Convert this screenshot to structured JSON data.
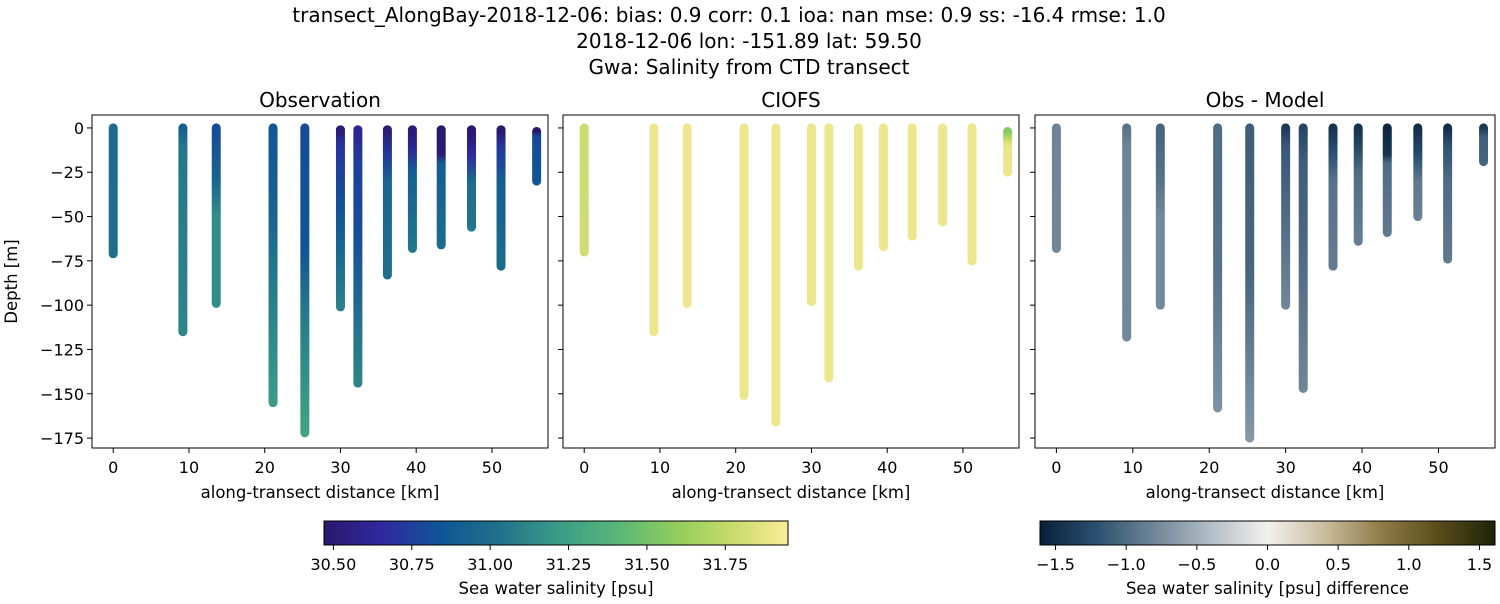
{
  "title_lines": [
    "transect_AlongBay-2018-12-06: bias: 0.9  corr: 0.1  ioa: nan  mse: 0.9  ss: -16.4  rmse: 1.0",
    "2018-12-06 lon: -151.89 lat: 59.50",
    "Gwa: Salinity from CTD transect"
  ],
  "chart_data": [
    {
      "type": "scatter",
      "title": "Observation",
      "xlabel": "along-transect distance [km]",
      "ylabel": "Depth [m]",
      "xlim": [
        -2.8,
        57.4
      ],
      "ylim": [
        -180.6,
        7.3
      ],
      "xticks": [
        0,
        10,
        20,
        30,
        40,
        50
      ],
      "yticks": [
        0,
        -25,
        -50,
        -75,
        -100,
        -125,
        -150,
        -175
      ],
      "ytick_labels": [
        "0",
        "−25",
        "−50",
        "−75",
        "−100",
        "−125",
        "−150",
        "−175"
      ],
      "colormap": "haline",
      "stations": [
        {
          "x": 0,
          "top": 0,
          "bottom": -71,
          "profile": [
            [
              0,
              31.0
            ],
            [
              71,
              31.02
            ]
          ]
        },
        {
          "x": 9.2,
          "top": 0,
          "bottom": -115,
          "profile": [
            [
              0,
              30.9
            ],
            [
              10,
              31.05
            ],
            [
              115,
              31.12
            ]
          ]
        },
        {
          "x": 13.6,
          "top": 0,
          "bottom": -99,
          "profile": [
            [
              0,
              30.8
            ],
            [
              30,
              30.95
            ],
            [
              50,
              31.15
            ],
            [
              99,
              31.15
            ]
          ]
        },
        {
          "x": 21.1,
          "top": 0,
          "bottom": -155,
          "profile": [
            [
              0,
              30.85
            ],
            [
              50,
              30.95
            ],
            [
              100,
              31.1
            ],
            [
              155,
              31.22
            ]
          ]
        },
        {
          "x": 25.3,
          "top": 0,
          "bottom": -172,
          "profile": [
            [
              0,
              30.8
            ],
            [
              70,
              30.85
            ],
            [
              100,
              31.05
            ],
            [
              172,
              31.27
            ]
          ]
        },
        {
          "x": 30.0,
          "top": -1,
          "bottom": -101,
          "profile": [
            [
              0,
              30.5
            ],
            [
              10,
              30.7
            ],
            [
              50,
              30.85
            ],
            [
              101,
              31.1
            ]
          ]
        },
        {
          "x": 32.3,
          "top": -1,
          "bottom": -144,
          "profile": [
            [
              0,
              30.6
            ],
            [
              20,
              30.75
            ],
            [
              55,
              30.8
            ],
            [
              144,
              31.12
            ]
          ]
        },
        {
          "x": 36.2,
          "top": -1,
          "bottom": -83,
          "profile": [
            [
              0,
              30.5
            ],
            [
              15,
              30.72
            ],
            [
              30,
              30.95
            ],
            [
              83,
              31.02
            ]
          ]
        },
        {
          "x": 39.5,
          "top": -1,
          "bottom": -68,
          "profile": [
            [
              0,
              30.5
            ],
            [
              10,
              30.6
            ],
            [
              25,
              30.9
            ],
            [
              68,
              31.05
            ]
          ]
        },
        {
          "x": 43.3,
          "top": -1,
          "bottom": -66,
          "profile": [
            [
              0,
              30.47
            ],
            [
              15,
              30.5
            ],
            [
              20,
              30.9
            ],
            [
              66,
              31.0
            ]
          ]
        },
        {
          "x": 47.3,
          "top": -1,
          "bottom": -56,
          "profile": [
            [
              0,
              30.47
            ],
            [
              15,
              30.65
            ],
            [
              30,
              31.0
            ],
            [
              56,
              31.05
            ]
          ]
        },
        {
          "x": 51.2,
          "top": -1,
          "bottom": -78,
          "profile": [
            [
              0,
              30.47
            ],
            [
              10,
              30.7
            ],
            [
              30,
              30.9
            ],
            [
              78,
              31.0
            ]
          ]
        },
        {
          "x": 55.9,
          "top": -2,
          "bottom": -30,
          "profile": [
            [
              2,
              30.47
            ],
            [
              5,
              30.8
            ],
            [
              30,
              30.85
            ]
          ]
        }
      ]
    },
    {
      "type": "scatter",
      "title": "CIOFS",
      "xlabel": "along-transect distance [km]",
      "xlim": [
        -2.8,
        57.4
      ],
      "ylim": [
        -180.6,
        7.3
      ],
      "xticks": [
        0,
        10,
        20,
        30,
        40,
        50
      ],
      "yticks": [
        0,
        -25,
        -50,
        -75,
        -100,
        -125,
        -150,
        -175
      ],
      "colormap": "haline",
      "stations": [
        {
          "x": 0,
          "top": 0,
          "bottom": -70,
          "profile": [
            [
              0,
              31.78
            ],
            [
              70,
              31.8
            ]
          ]
        },
        {
          "x": 9.2,
          "top": 0,
          "bottom": -115,
          "profile": [
            [
              0,
              31.9
            ],
            [
              115,
              31.9
            ]
          ]
        },
        {
          "x": 13.6,
          "top": 0,
          "bottom": -99,
          "profile": [
            [
              0,
              31.9
            ],
            [
              99,
              31.9
            ]
          ]
        },
        {
          "x": 21.1,
          "top": 0,
          "bottom": -151,
          "profile": [
            [
              0,
              31.9
            ],
            [
              151,
              31.9
            ]
          ]
        },
        {
          "x": 25.3,
          "top": 0,
          "bottom": -166,
          "profile": [
            [
              0,
              31.9
            ],
            [
              166,
              31.9
            ]
          ]
        },
        {
          "x": 30.0,
          "top": 0,
          "bottom": -98,
          "profile": [
            [
              0,
              31.9
            ],
            [
              98,
              31.9
            ]
          ]
        },
        {
          "x": 32.3,
          "top": 0,
          "bottom": -141,
          "profile": [
            [
              0,
              31.9
            ],
            [
              141,
              31.9
            ]
          ]
        },
        {
          "x": 36.2,
          "top": 0,
          "bottom": -78,
          "profile": [
            [
              0,
              31.9
            ],
            [
              78,
              31.9
            ]
          ]
        },
        {
          "x": 39.5,
          "top": 0,
          "bottom": -67,
          "profile": [
            [
              0,
              31.9
            ],
            [
              67,
              31.9
            ]
          ]
        },
        {
          "x": 43.3,
          "top": 0,
          "bottom": -61,
          "profile": [
            [
              0,
              31.9
            ],
            [
              61,
              31.9
            ]
          ]
        },
        {
          "x": 47.3,
          "top": 0,
          "bottom": -53,
          "profile": [
            [
              0,
              31.9
            ],
            [
              53,
              31.9
            ]
          ]
        },
        {
          "x": 51.2,
          "top": 0,
          "bottom": -75,
          "profile": [
            [
              0,
              31.9
            ],
            [
              75,
              31.9
            ]
          ]
        },
        {
          "x": 55.9,
          "top": -2,
          "bottom": -25,
          "profile": [
            [
              2,
              31.55
            ],
            [
              6,
              31.75
            ],
            [
              10,
              31.88
            ],
            [
              25,
              31.9
            ]
          ]
        }
      ]
    },
    {
      "type": "scatter",
      "title": "Obs - Model",
      "xlabel": "along-transect distance [km]",
      "xlim": [
        -2.8,
        57.4
      ],
      "ylim": [
        -180.6,
        7.3
      ],
      "xticks": [
        0,
        10,
        20,
        30,
        40,
        50
      ],
      "yticks": [
        0,
        -25,
        -50,
        -75,
        -100,
        -125,
        -150,
        -175
      ],
      "colormap": "diff",
      "stations": [
        {
          "x": 0,
          "top": 0,
          "bottom": -68,
          "profile": [
            [
              0,
              -0.82
            ],
            [
              68,
              -0.8
            ]
          ]
        },
        {
          "x": 9.2,
          "top": 0,
          "bottom": -118,
          "profile": [
            [
              0,
              -0.95
            ],
            [
              10,
              -0.82
            ],
            [
              118,
              -0.78
            ]
          ]
        },
        {
          "x": 13.6,
          "top": 0,
          "bottom": -100,
          "profile": [
            [
              0,
              -1.05
            ],
            [
              30,
              -0.95
            ],
            [
              50,
              -0.78
            ],
            [
              100,
              -0.78
            ]
          ]
        },
        {
          "x": 21.1,
          "top": 0,
          "bottom": -158,
          "profile": [
            [
              0,
              -1.0
            ],
            [
              80,
              -0.95
            ],
            [
              158,
              -0.72
            ]
          ]
        },
        {
          "x": 25.3,
          "top": 0,
          "bottom": -175,
          "profile": [
            [
              0,
              -1.1
            ],
            [
              80,
              -1.05
            ],
            [
              175,
              -0.68
            ]
          ]
        },
        {
          "x": 30.0,
          "top": 0,
          "bottom": -100,
          "profile": [
            [
              0,
              -1.4
            ],
            [
              10,
              -1.15
            ],
            [
              50,
              -1.0
            ],
            [
              100,
              -0.8
            ]
          ]
        },
        {
          "x": 32.3,
          "top": 0,
          "bottom": -147,
          "profile": [
            [
              0,
              -1.3
            ],
            [
              20,
              -1.1
            ],
            [
              55,
              -1.05
            ],
            [
              147,
              -0.8
            ]
          ]
        },
        {
          "x": 36.2,
          "top": 0,
          "bottom": -78,
          "profile": [
            [
              0,
              -1.45
            ],
            [
              15,
              -1.2
            ],
            [
              30,
              -0.95
            ],
            [
              78,
              -0.88
            ]
          ]
        },
        {
          "x": 39.5,
          "top": 0,
          "bottom": -64,
          "profile": [
            [
              0,
              -1.45
            ],
            [
              10,
              -1.3
            ],
            [
              25,
              -1.0
            ],
            [
              64,
              -0.85
            ]
          ]
        },
        {
          "x": 43.3,
          "top": 0,
          "bottom": -59,
          "profile": [
            [
              0,
              -1.55
            ],
            [
              15,
              -1.45
            ],
            [
              20,
              -1.0
            ],
            [
              59,
              -0.9
            ]
          ]
        },
        {
          "x": 47.3,
          "top": 0,
          "bottom": -50,
          "profile": [
            [
              0,
              -1.5
            ],
            [
              15,
              -1.25
            ],
            [
              30,
              -0.9
            ],
            [
              50,
              -0.85
            ]
          ]
        },
        {
          "x": 51.2,
          "top": 0,
          "bottom": -74,
          "profile": [
            [
              0,
              -1.5
            ],
            [
              10,
              -1.2
            ],
            [
              30,
              -1.0
            ],
            [
              74,
              -0.9
            ]
          ]
        },
        {
          "x": 55.9,
          "top": 0,
          "bottom": -19,
          "profile": [
            [
              0,
              -1.4
            ],
            [
              5,
              -1.1
            ],
            [
              19,
              -1.05
            ]
          ]
        }
      ]
    }
  ],
  "colorbars": [
    {
      "label": "Sea water salinity [psu]",
      "range": [
        30.47,
        31.95
      ],
      "ticks": [
        "30.50",
        "30.75",
        "31.00",
        "31.25",
        "31.50",
        "31.75"
      ],
      "colormap": "haline",
      "colors": [
        "#2a186c",
        "#3028a0",
        "#0f5596",
        "#1f708b",
        "#3a9a88",
        "#55b57a",
        "#8dcc5c",
        "#c5db6a",
        "#fbec98"
      ]
    },
    {
      "label": "Sea water salinity [psu] difference",
      "range": [
        -1.61,
        1.61
      ],
      "ticks": [
        "−1.5",
        "−1.0",
        "−0.5",
        "0.0",
        "0.5",
        "1.0",
        "1.5"
      ],
      "colormap": "diff",
      "colors": [
        "#08203a",
        "#2c5170",
        "#6f8598",
        "#b2bec6",
        "#f3f1ee",
        "#cabd9e",
        "#8f7c47",
        "#5a4c1b",
        "#1c2308"
      ]
    }
  ]
}
